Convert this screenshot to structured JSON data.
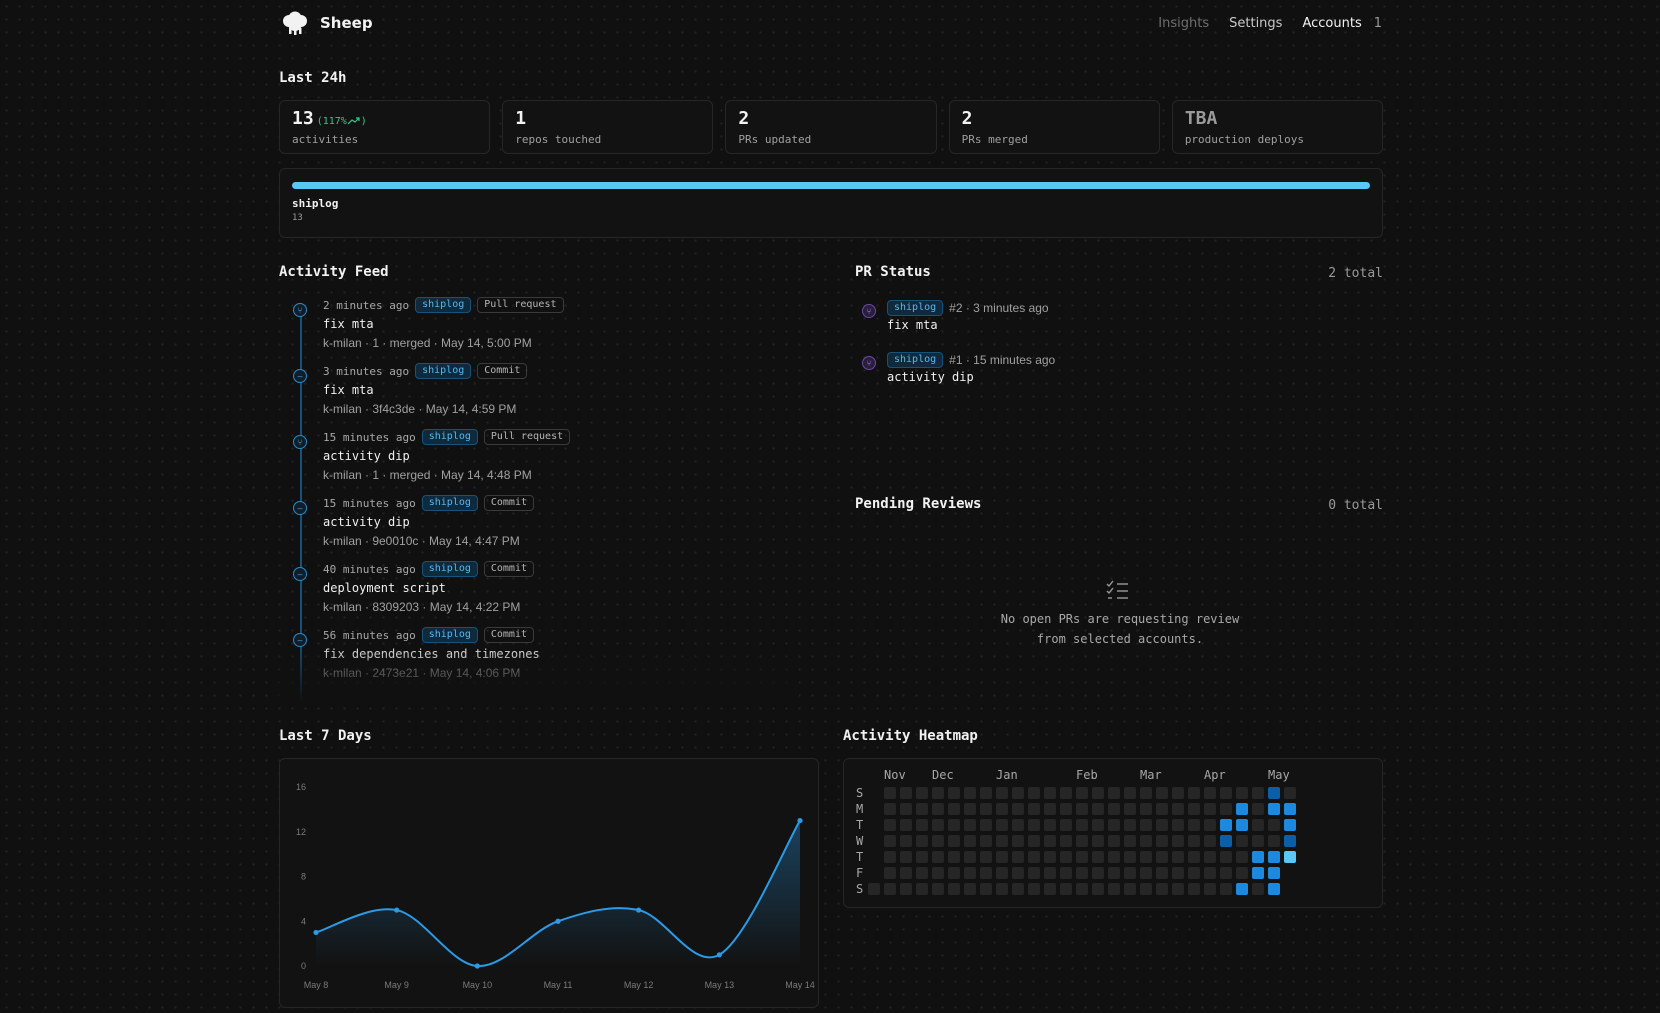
{
  "header": {
    "brand": "Sheep",
    "nav": {
      "insights": "Insights",
      "settings": "Settings",
      "accounts": "Accounts",
      "accounts_count": "1"
    }
  },
  "summary": {
    "title": "Last 24h",
    "stats": [
      {
        "value": "13",
        "change": "(117%",
        "label": "activities"
      },
      {
        "value": "1",
        "label": "repos touched"
      },
      {
        "value": "2",
        "label": "PRs updated"
      },
      {
        "value": "2",
        "label": "PRs merged"
      },
      {
        "value": "TBA",
        "label": "production deploys"
      }
    ],
    "repo": {
      "name": "shiplog",
      "count": "13",
      "share": 1.0
    }
  },
  "feed": {
    "title": "Activity Feed",
    "items": [
      {
        "time": "2 minutes ago",
        "repo": "shiplog",
        "type": "Pull request",
        "title": "fix mta",
        "meta": "k-milan · 1 · merged · May 14, 5:00 PM",
        "icon": "pull-request-icon"
      },
      {
        "time": "3 minutes ago",
        "repo": "shiplog",
        "type": "Commit",
        "title": "fix mta",
        "meta": "k-milan · 3f4c3de · May 14, 4:59 PM",
        "icon": "commit-icon"
      },
      {
        "time": "15 minutes ago",
        "repo": "shiplog",
        "type": "Pull request",
        "title": "activity dip",
        "meta": "k-milan · 1 · merged · May 14, 4:48 PM",
        "icon": "pull-request-icon"
      },
      {
        "time": "15 minutes ago",
        "repo": "shiplog",
        "type": "Commit",
        "title": "activity dip",
        "meta": "k-milan · 9e0010c · May 14, 4:47 PM",
        "icon": "commit-icon"
      },
      {
        "time": "40 minutes ago",
        "repo": "shiplog",
        "type": "Commit",
        "title": "deployment script",
        "meta": "k-milan · 8309203 · May 14, 4:22 PM",
        "icon": "commit-icon"
      },
      {
        "time": "56 minutes ago",
        "repo": "shiplog",
        "type": "Commit",
        "title": "fix dependencies and timezones",
        "meta": "k-milan · 2473e21 · May 14, 4:06 PM",
        "icon": "commit-icon"
      }
    ]
  },
  "pr_status": {
    "title": "PR Status",
    "total": "2 total",
    "items": [
      {
        "repo": "shiplog",
        "meta": "#2 · 3 minutes ago",
        "title": "fix mta"
      },
      {
        "repo": "shiplog",
        "meta": "#1 · 15 minutes ago",
        "title": "activity dip"
      }
    ]
  },
  "pending": {
    "title": "Pending Reviews",
    "total": "0 total",
    "empty_line1": "No open PRs are requesting review",
    "empty_line2": "from selected accounts."
  },
  "week": {
    "title": "Last 7 Days"
  },
  "heatmap": {
    "title": "Activity Heatmap",
    "months": [
      "Nov",
      "Dec",
      "Jan",
      "Feb",
      "Mar",
      "Apr",
      "May"
    ],
    "days": [
      "S",
      "M",
      "T",
      "W",
      "T",
      "F",
      "S"
    ],
    "colors": {
      "empty": "#262626",
      "low": "#0b5fa8",
      "mid": "#1a8ae0",
      "high": "#5ac8f5"
    }
  },
  "chart_data": {
    "type": "line",
    "x": [
      "May 8",
      "May 9",
      "May 10",
      "May 11",
      "May 12",
      "May 13",
      "May 14"
    ],
    "series": [
      {
        "values": [
          3,
          5,
          0,
          4,
          5,
          1,
          13
        ]
      }
    ],
    "yticks": [
      "0",
      "4",
      "8",
      "12",
      "16"
    ],
    "ylim": [
      0,
      16
    ],
    "color": "#2b9be8",
    "grid": false
  }
}
